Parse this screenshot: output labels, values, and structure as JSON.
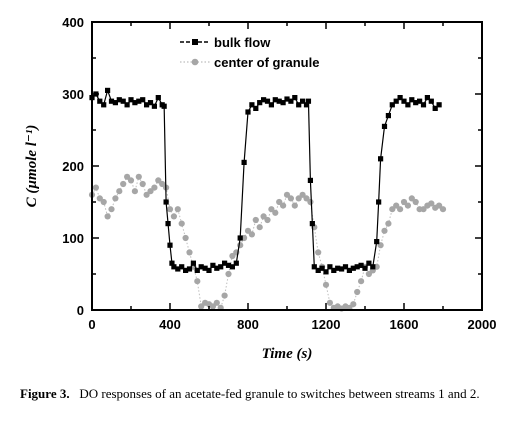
{
  "chart_data": {
    "type": "scatter",
    "xlabel": "Time (s)",
    "ylabel": "C (µmole l⁻¹)",
    "xlim": [
      0,
      2000
    ],
    "ylim": [
      0,
      400
    ],
    "x_ticks": [
      "0",
      "400",
      "800",
      "1200",
      "1600",
      "2000"
    ],
    "y_ticks": [
      "0",
      "100",
      "200",
      "300",
      "400"
    ],
    "grid": false,
    "legend_position": "top-center",
    "series": [
      {
        "name": "bulk flow",
        "color": "#000000",
        "marker": "square",
        "line": "solid",
        "x": [
          0,
          20,
          40,
          60,
          80,
          100,
          120,
          140,
          160,
          180,
          200,
          220,
          240,
          260,
          280,
          300,
          320,
          340,
          360,
          370,
          380,
          390,
          400,
          410,
          420,
          440,
          460,
          480,
          500,
          520,
          540,
          560,
          580,
          600,
          620,
          640,
          660,
          680,
          700,
          720,
          740,
          760,
          780,
          800,
          820,
          840,
          860,
          880,
          900,
          920,
          940,
          960,
          980,
          1000,
          1020,
          1040,
          1060,
          1080,
          1100,
          1110,
          1120,
          1130,
          1140,
          1160,
          1180,
          1200,
          1220,
          1240,
          1260,
          1280,
          1300,
          1320,
          1340,
          1360,
          1380,
          1400,
          1420,
          1440,
          1460,
          1470,
          1480,
          1500,
          1520,
          1540,
          1560,
          1580,
          1600,
          1620,
          1640,
          1660,
          1680,
          1700,
          1720,
          1740,
          1760,
          1780
        ],
        "y": [
          295,
          300,
          290,
          285,
          305,
          290,
          288,
          292,
          290,
          285,
          292,
          288,
          290,
          292,
          285,
          288,
          283,
          295,
          285,
          283,
          150,
          120,
          90,
          65,
          60,
          57,
          60,
          55,
          57,
          65,
          55,
          60,
          58,
          55,
          62,
          58,
          60,
          65,
          62,
          60,
          65,
          100,
          205,
          275,
          285,
          280,
          288,
          292,
          290,
          285,
          292,
          290,
          288,
          293,
          290,
          295,
          285,
          290,
          285,
          290,
          180,
          120,
          60,
          55,
          58,
          53,
          60,
          55,
          58,
          57,
          60,
          55,
          58,
          60,
          62,
          58,
          65,
          60,
          95,
          150,
          210,
          255,
          270,
          285,
          290,
          295,
          290,
          285,
          292,
          288,
          290,
          285,
          295,
          290,
          280,
          285
        ]
      },
      {
        "name": "center of granule",
        "color": "#a6a6a6",
        "marker": "circle",
        "line": "dotted",
        "x": [
          0,
          20,
          40,
          60,
          80,
          100,
          120,
          140,
          160,
          180,
          200,
          220,
          240,
          260,
          280,
          300,
          320,
          340,
          360,
          380,
          400,
          420,
          440,
          460,
          480,
          500,
          520,
          540,
          560,
          580,
          600,
          620,
          640,
          660,
          680,
          700,
          720,
          740,
          760,
          780,
          800,
          820,
          840,
          860,
          880,
          900,
          920,
          940,
          960,
          980,
          1000,
          1020,
          1040,
          1060,
          1080,
          1100,
          1120,
          1140,
          1160,
          1180,
          1200,
          1220,
          1240,
          1260,
          1280,
          1300,
          1320,
          1340,
          1360,
          1380,
          1400,
          1420,
          1440,
          1460,
          1480,
          1500,
          1520,
          1540,
          1560,
          1580,
          1600,
          1620,
          1640,
          1660,
          1680,
          1700,
          1720,
          1740,
          1760,
          1780,
          1800
        ],
        "y": [
          160,
          170,
          155,
          150,
          130,
          140,
          155,
          165,
          175,
          185,
          180,
          165,
          185,
          175,
          160,
          165,
          170,
          180,
          175,
          170,
          140,
          130,
          140,
          120,
          100,
          80,
          60,
          40,
          5,
          10,
          8,
          5,
          10,
          3,
          20,
          50,
          75,
          80,
          90,
          100,
          110,
          105,
          125,
          115,
          130,
          125,
          140,
          135,
          150,
          145,
          160,
          155,
          145,
          155,
          160,
          155,
          150,
          115,
          80,
          60,
          35,
          10,
          3,
          5,
          2,
          5,
          3,
          8,
          25,
          40,
          60,
          50,
          55,
          60,
          90,
          110,
          120,
          140,
          145,
          140,
          150,
          145,
          155,
          150,
          140,
          140,
          145,
          148,
          142,
          145,
          140
        ]
      }
    ]
  },
  "caption": {
    "label": "Figure 3.",
    "text": "DO responses of an acetate-fed granule to switches between streams 1 and 2."
  }
}
